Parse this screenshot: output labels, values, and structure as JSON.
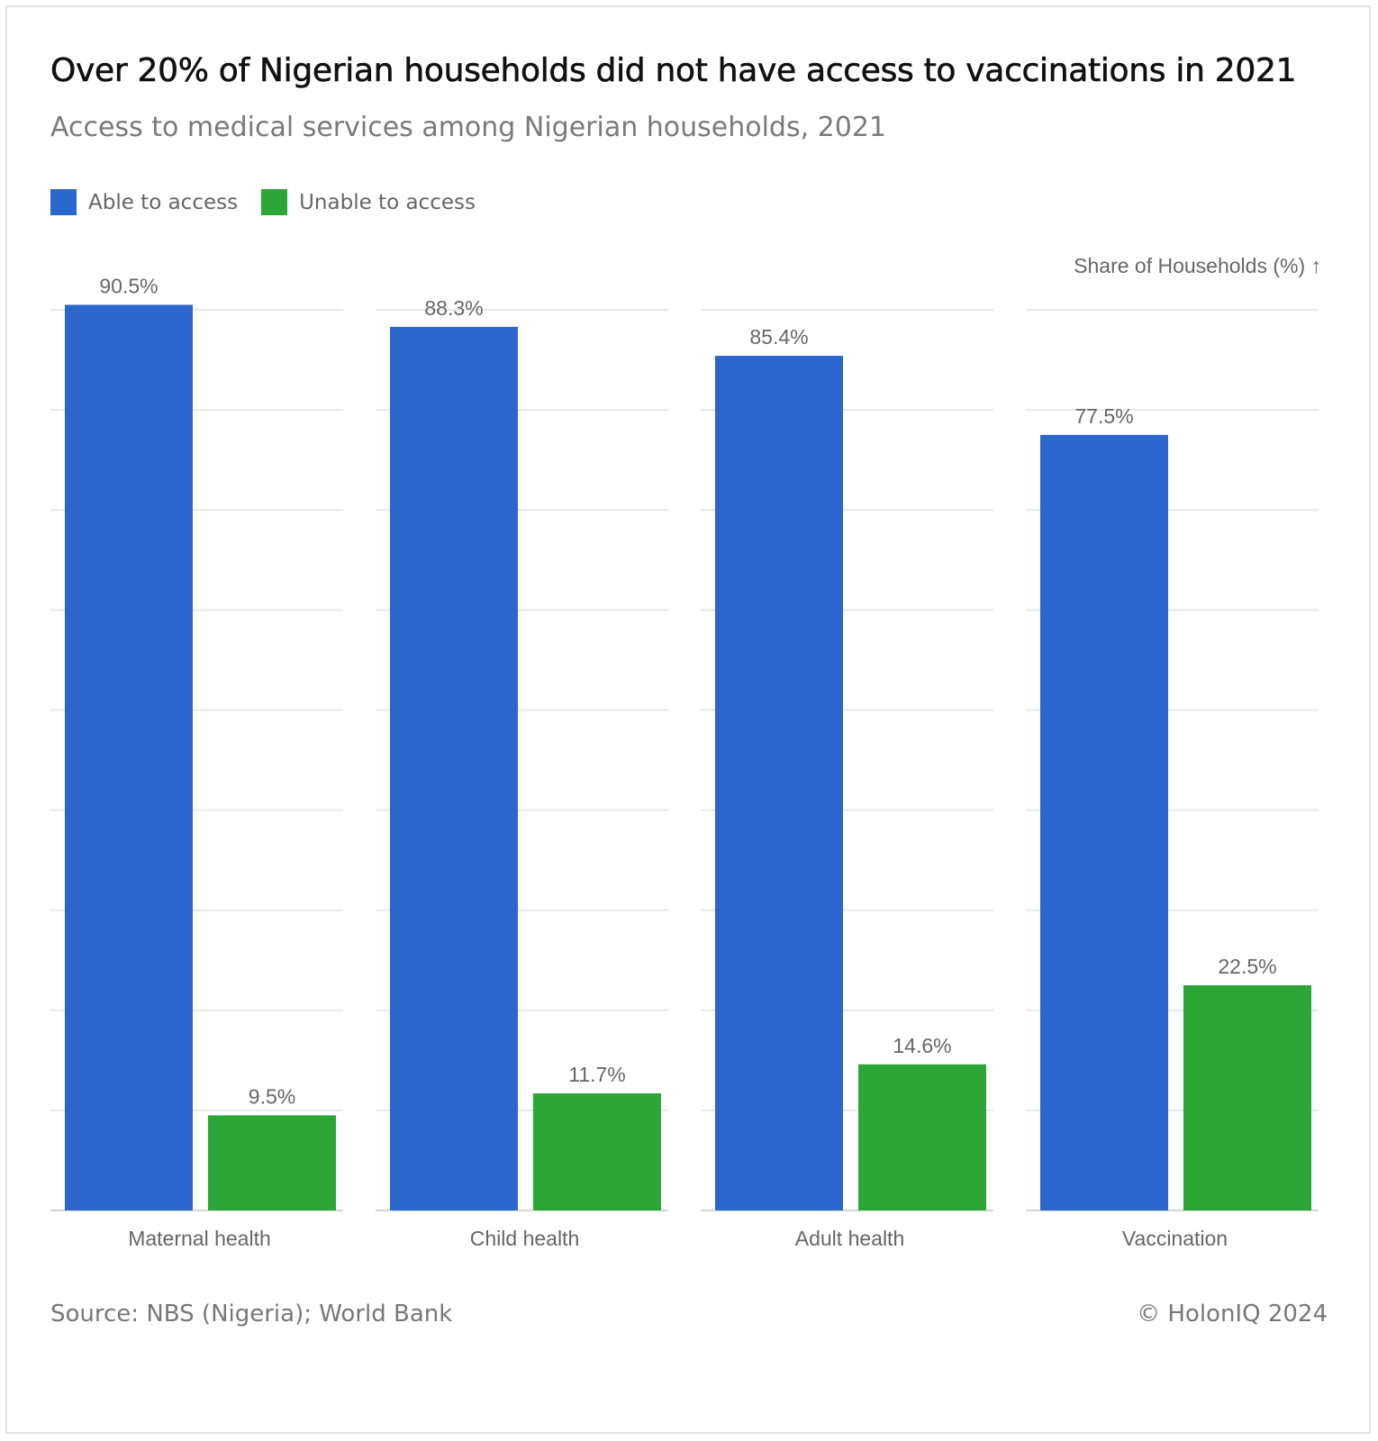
{
  "header": {
    "title": "Over 20% of Nigerian households did not have access to vaccinations in 2021",
    "subtitle": "Access to medical services among Nigerian households, 2021"
  },
  "legend": [
    {
      "label": "Able to access",
      "color": "#2a66cc"
    },
    {
      "label": "Unable to access",
      "color": "#2ca636"
    }
  ],
  "footer": {
    "source": "Source: NBS (Nigeria); World Bank",
    "credit": "© HolonIQ 2024"
  },
  "chart_data": {
    "type": "bar",
    "title": "Over 20% of Nigerian households did not have access to vaccinations in 2021",
    "subtitle": "Access to medical services among Nigerian households, 2021",
    "ylabel": "Share of Households (%) ↑",
    "categories": [
      "Maternal health",
      "Child health",
      "Adult health",
      "Vaccination"
    ],
    "series": [
      {
        "name": "Able to access",
        "color": "#2a66cc",
        "values": [
          90.5,
          88.3,
          85.4,
          77.5
        ],
        "labels": [
          "90.5%",
          "88.3%",
          "85.4%",
          "77.5%"
        ]
      },
      {
        "name": "Unable to access",
        "color": "#2ca636",
        "values": [
          9.5,
          11.7,
          14.6,
          22.5
        ],
        "labels": [
          "9.5%",
          "11.7%",
          "14.6%",
          "22.5%"
        ]
      }
    ],
    "ylim": [
      0,
      90
    ],
    "grid": true,
    "legend_position": "top-left"
  }
}
